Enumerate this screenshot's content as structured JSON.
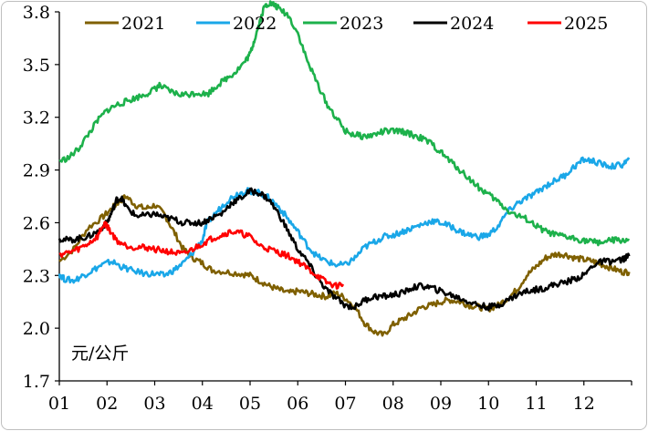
{
  "chart_data": {
    "type": "line",
    "unit_label": "元/公斤",
    "title": "",
    "xlabel": "",
    "ylabel": "",
    "x_ticks": [
      "01",
      "02",
      "03",
      "04",
      "05",
      "06",
      "07",
      "08",
      "09",
      "10",
      "11",
      "12"
    ],
    "y_ticks": [
      "1.7",
      "2.0",
      "2.3",
      "2.6",
      "2.9",
      "3.2",
      "3.5",
      "3.8"
    ],
    "ylim": [
      1.7,
      3.8
    ],
    "grid": false,
    "legend": "top",
    "series": [
      {
        "name": "2021",
        "color": "#7f6000",
        "points": [
          [
            1.0,
            2.38
          ],
          [
            1.3,
            2.45
          ],
          [
            1.6,
            2.57
          ],
          [
            1.9,
            2.63
          ],
          [
            2.1,
            2.68
          ],
          [
            2.25,
            2.72
          ],
          [
            2.4,
            2.75
          ],
          [
            2.6,
            2.7
          ],
          [
            2.8,
            2.68
          ],
          [
            3.0,
            2.7
          ],
          [
            3.2,
            2.65
          ],
          [
            3.4,
            2.55
          ],
          [
            3.6,
            2.45
          ],
          [
            3.8,
            2.4
          ],
          [
            4.0,
            2.37
          ],
          [
            4.2,
            2.33
          ],
          [
            4.5,
            2.32
          ],
          [
            4.8,
            2.31
          ],
          [
            5.0,
            2.3
          ],
          [
            5.2,
            2.27
          ],
          [
            5.4,
            2.24
          ],
          [
            5.6,
            2.22
          ],
          [
            5.8,
            2.2
          ],
          [
            6.0,
            2.21
          ],
          [
            6.2,
            2.2
          ],
          [
            6.4,
            2.19
          ],
          [
            6.6,
            2.18
          ],
          [
            6.8,
            2.2
          ],
          [
            7.0,
            2.17
          ],
          [
            7.2,
            2.12
          ],
          [
            7.4,
            2.03
          ],
          [
            7.6,
            1.98
          ],
          [
            7.8,
            1.96
          ],
          [
            8.0,
            2.02
          ],
          [
            8.2,
            2.05
          ],
          [
            8.4,
            2.08
          ],
          [
            8.6,
            2.12
          ],
          [
            8.8,
            2.13
          ],
          [
            9.0,
            2.15
          ],
          [
            9.2,
            2.16
          ],
          [
            9.4,
            2.15
          ],
          [
            9.6,
            2.13
          ],
          [
            9.8,
            2.12
          ],
          [
            10.0,
            2.11
          ],
          [
            10.2,
            2.13
          ],
          [
            10.4,
            2.17
          ],
          [
            10.6,
            2.22
          ],
          [
            10.8,
            2.3
          ],
          [
            11.0,
            2.35
          ],
          [
            11.2,
            2.4
          ],
          [
            11.4,
            2.42
          ],
          [
            11.6,
            2.42
          ],
          [
            11.8,
            2.4
          ],
          [
            12.0,
            2.39
          ],
          [
            12.2,
            2.38
          ],
          [
            12.4,
            2.36
          ],
          [
            12.6,
            2.34
          ],
          [
            12.8,
            2.32
          ],
          [
            12.95,
            2.32
          ]
        ]
      },
      {
        "name": "2022",
        "color": "#1aa7e8",
        "points": [
          [
            1.0,
            2.31
          ],
          [
            1.1,
            2.28
          ],
          [
            1.3,
            2.27
          ],
          [
            1.5,
            2.3
          ],
          [
            1.7,
            2.33
          ],
          [
            1.9,
            2.36
          ],
          [
            2.1,
            2.38
          ],
          [
            2.3,
            2.35
          ],
          [
            2.5,
            2.33
          ],
          [
            2.8,
            2.31
          ],
          [
            3.0,
            2.31
          ],
          [
            3.2,
            2.3
          ],
          [
            3.4,
            2.33
          ],
          [
            3.6,
            2.37
          ],
          [
            3.8,
            2.43
          ],
          [
            4.0,
            2.5
          ],
          [
            4.1,
            2.6
          ],
          [
            4.3,
            2.66
          ],
          [
            4.5,
            2.72
          ],
          [
            4.7,
            2.76
          ],
          [
            4.9,
            2.78
          ],
          [
            5.0,
            2.78
          ],
          [
            5.2,
            2.77
          ],
          [
            5.4,
            2.74
          ],
          [
            5.6,
            2.69
          ],
          [
            5.8,
            2.62
          ],
          [
            6.0,
            2.55
          ],
          [
            6.2,
            2.47
          ],
          [
            6.4,
            2.41
          ],
          [
            6.6,
            2.38
          ],
          [
            6.8,
            2.36
          ],
          [
            7.0,
            2.36
          ],
          [
            7.2,
            2.4
          ],
          [
            7.4,
            2.46
          ],
          [
            7.6,
            2.49
          ],
          [
            7.8,
            2.52
          ],
          [
            8.0,
            2.53
          ],
          [
            8.2,
            2.55
          ],
          [
            8.4,
            2.57
          ],
          [
            8.6,
            2.59
          ],
          [
            8.8,
            2.61
          ],
          [
            9.0,
            2.6
          ],
          [
            9.2,
            2.58
          ],
          [
            9.4,
            2.55
          ],
          [
            9.6,
            2.53
          ],
          [
            9.8,
            2.52
          ],
          [
            10.0,
            2.53
          ],
          [
            10.2,
            2.58
          ],
          [
            10.4,
            2.66
          ],
          [
            10.6,
            2.71
          ],
          [
            10.8,
            2.74
          ],
          [
            11.0,
            2.77
          ],
          [
            11.2,
            2.81
          ],
          [
            11.4,
            2.84
          ],
          [
            11.6,
            2.87
          ],
          [
            11.8,
            2.92
          ],
          [
            12.0,
            2.96
          ],
          [
            12.2,
            2.95
          ],
          [
            12.4,
            2.93
          ],
          [
            12.6,
            2.92
          ],
          [
            12.8,
            2.93
          ],
          [
            12.95,
            2.96
          ]
        ]
      },
      {
        "name": "2023",
        "color": "#1db14b",
        "points": [
          [
            1.0,
            2.95
          ],
          [
            1.2,
            2.97
          ],
          [
            1.4,
            3.02
          ],
          [
            1.6,
            3.1
          ],
          [
            1.8,
            3.18
          ],
          [
            2.0,
            3.24
          ],
          [
            2.2,
            3.27
          ],
          [
            2.4,
            3.29
          ],
          [
            2.6,
            3.31
          ],
          [
            2.8,
            3.33
          ],
          [
            3.0,
            3.36
          ],
          [
            3.1,
            3.38
          ],
          [
            3.3,
            3.35
          ],
          [
            3.5,
            3.33
          ],
          [
            3.7,
            3.33
          ],
          [
            3.9,
            3.34
          ],
          [
            4.1,
            3.33
          ],
          [
            4.3,
            3.38
          ],
          [
            4.5,
            3.42
          ],
          [
            4.7,
            3.46
          ],
          [
            4.9,
            3.52
          ],
          [
            5.0,
            3.56
          ],
          [
            5.1,
            3.65
          ],
          [
            5.2,
            3.74
          ],
          [
            5.3,
            3.83
          ],
          [
            5.4,
            3.85
          ],
          [
            5.5,
            3.84
          ],
          [
            5.6,
            3.82
          ],
          [
            5.8,
            3.78
          ],
          [
            6.0,
            3.68
          ],
          [
            6.2,
            3.52
          ],
          [
            6.4,
            3.4
          ],
          [
            6.6,
            3.28
          ],
          [
            6.8,
            3.2
          ],
          [
            7.0,
            3.12
          ],
          [
            7.2,
            3.1
          ],
          [
            7.4,
            3.09
          ],
          [
            7.6,
            3.1
          ],
          [
            7.8,
            3.12
          ],
          [
            8.0,
            3.12
          ],
          [
            8.2,
            3.12
          ],
          [
            8.4,
            3.1
          ],
          [
            8.6,
            3.08
          ],
          [
            8.8,
            3.05
          ],
          [
            9.0,
            3.0
          ],
          [
            9.2,
            2.95
          ],
          [
            9.4,
            2.9
          ],
          [
            9.6,
            2.85
          ],
          [
            9.8,
            2.8
          ],
          [
            10.0,
            2.76
          ],
          [
            10.2,
            2.72
          ],
          [
            10.4,
            2.67
          ],
          [
            10.6,
            2.64
          ],
          [
            10.8,
            2.62
          ],
          [
            11.0,
            2.58
          ],
          [
            11.2,
            2.55
          ],
          [
            11.4,
            2.53
          ],
          [
            11.6,
            2.52
          ],
          [
            11.8,
            2.51
          ],
          [
            12.0,
            2.5
          ],
          [
            12.2,
            2.49
          ],
          [
            12.4,
            2.49
          ],
          [
            12.6,
            2.5
          ],
          [
            12.8,
            2.5
          ],
          [
            12.95,
            2.5
          ]
        ]
      },
      {
        "name": "2024",
        "color": "#000000",
        "points": [
          [
            1.0,
            2.51
          ],
          [
            1.2,
            2.5
          ],
          [
            1.4,
            2.51
          ],
          [
            1.6,
            2.52
          ],
          [
            1.8,
            2.55
          ],
          [
            2.0,
            2.6
          ],
          [
            2.1,
            2.66
          ],
          [
            2.2,
            2.73
          ],
          [
            2.3,
            2.74
          ],
          [
            2.4,
            2.69
          ],
          [
            2.6,
            2.64
          ],
          [
            2.8,
            2.64
          ],
          [
            3.0,
            2.65
          ],
          [
            3.2,
            2.63
          ],
          [
            3.4,
            2.62
          ],
          [
            3.6,
            2.6
          ],
          [
            3.8,
            2.6
          ],
          [
            4.0,
            2.6
          ],
          [
            4.2,
            2.63
          ],
          [
            4.4,
            2.65
          ],
          [
            4.6,
            2.71
          ],
          [
            4.8,
            2.74
          ],
          [
            5.0,
            2.78
          ],
          [
            5.2,
            2.77
          ],
          [
            5.4,
            2.73
          ],
          [
            5.6,
            2.65
          ],
          [
            5.8,
            2.55
          ],
          [
            6.0,
            2.45
          ],
          [
            6.2,
            2.38
          ],
          [
            6.4,
            2.29
          ],
          [
            6.6,
            2.22
          ],
          [
            6.8,
            2.17
          ],
          [
            7.0,
            2.13
          ],
          [
            7.2,
            2.12
          ],
          [
            7.4,
            2.16
          ],
          [
            7.6,
            2.18
          ],
          [
            7.8,
            2.18
          ],
          [
            8.0,
            2.19
          ],
          [
            8.2,
            2.2
          ],
          [
            8.4,
            2.23
          ],
          [
            8.6,
            2.24
          ],
          [
            8.8,
            2.23
          ],
          [
            9.0,
            2.21
          ],
          [
            9.2,
            2.19
          ],
          [
            9.4,
            2.17
          ],
          [
            9.6,
            2.15
          ],
          [
            9.8,
            2.13
          ],
          [
            10.0,
            2.12
          ],
          [
            10.2,
            2.13
          ],
          [
            10.4,
            2.16
          ],
          [
            10.6,
            2.19
          ],
          [
            10.8,
            2.21
          ],
          [
            11.0,
            2.22
          ],
          [
            11.2,
            2.23
          ],
          [
            11.4,
            2.25
          ],
          [
            11.6,
            2.26
          ],
          [
            11.8,
            2.28
          ],
          [
            12.0,
            2.3
          ],
          [
            12.2,
            2.36
          ],
          [
            12.4,
            2.38
          ],
          [
            12.6,
            2.38
          ],
          [
            12.8,
            2.39
          ],
          [
            12.95,
            2.41
          ]
        ]
      },
      {
        "name": "2025",
        "color": "#ff0000",
        "points": [
          [
            1.0,
            2.42
          ],
          [
            1.2,
            2.43
          ],
          [
            1.4,
            2.45
          ],
          [
            1.6,
            2.48
          ],
          [
            1.8,
            2.52
          ],
          [
            1.95,
            2.6
          ],
          [
            2.05,
            2.56
          ],
          [
            2.2,
            2.5
          ],
          [
            2.4,
            2.47
          ],
          [
            2.6,
            2.46
          ],
          [
            2.8,
            2.46
          ],
          [
            3.0,
            2.45
          ],
          [
            3.2,
            2.44
          ],
          [
            3.4,
            2.43
          ],
          [
            3.6,
            2.42
          ],
          [
            3.8,
            2.45
          ],
          [
            4.0,
            2.48
          ],
          [
            4.2,
            2.51
          ],
          [
            4.4,
            2.53
          ],
          [
            4.6,
            2.55
          ],
          [
            4.8,
            2.54
          ],
          [
            5.0,
            2.52
          ],
          [
            5.2,
            2.47
          ],
          [
            5.4,
            2.45
          ],
          [
            5.6,
            2.43
          ],
          [
            5.8,
            2.41
          ],
          [
            6.0,
            2.38
          ],
          [
            6.2,
            2.34
          ],
          [
            6.4,
            2.3
          ],
          [
            6.6,
            2.26
          ],
          [
            6.8,
            2.24
          ],
          [
            6.95,
            2.25
          ]
        ]
      }
    ]
  }
}
